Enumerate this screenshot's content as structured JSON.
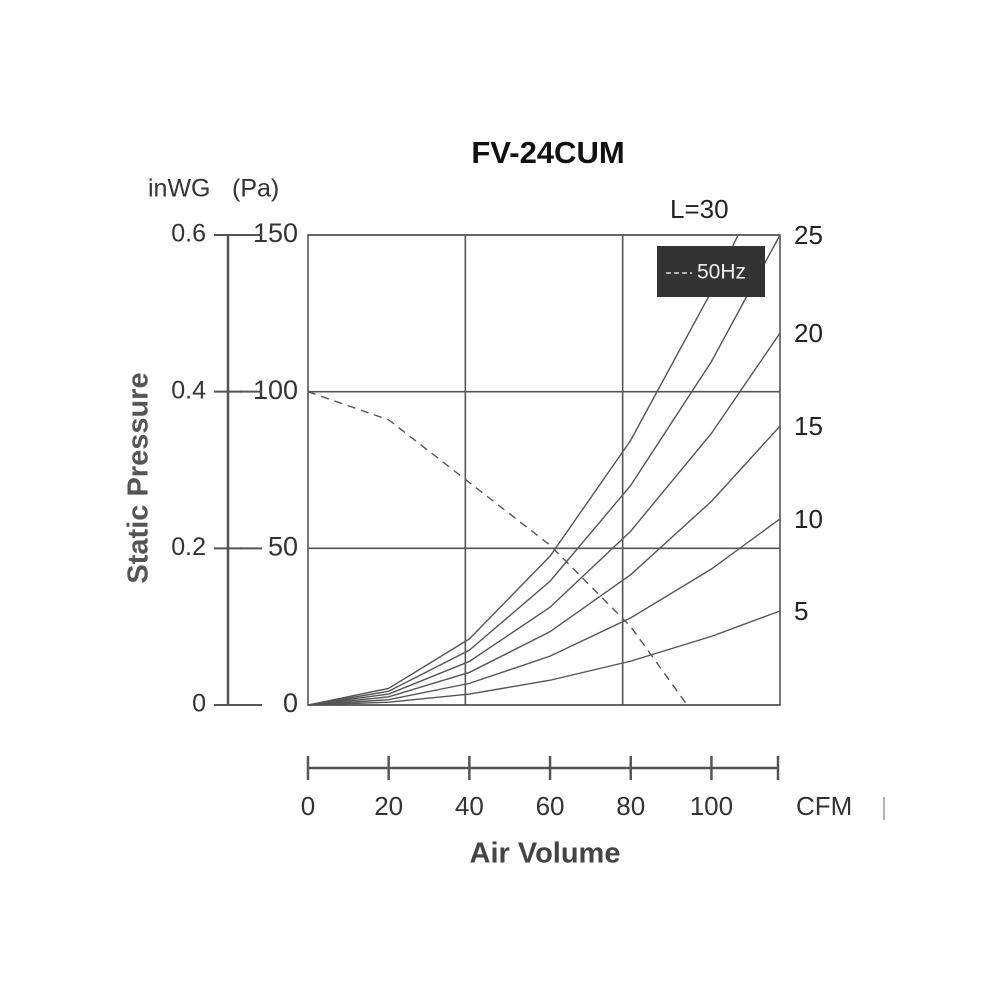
{
  "chart_data": {
    "type": "line",
    "title": "FV-24CUM",
    "y_label": "Static Pressure",
    "y_unit": "(Pa)",
    "y2_unit": "inWG",
    "x_label": "Air Volume",
    "x_unit": "CFM",
    "xlim": [
      0,
      117
    ],
    "xticks": [
      0,
      20,
      40,
      60,
      80,
      100
    ],
    "ylim": [
      0,
      150
    ],
    "yticks": [
      0,
      50,
      100,
      150
    ],
    "y2lim": [
      0,
      0.6
    ],
    "y2ticks": [
      0,
      0.2,
      0.4,
      0.6
    ],
    "grid": true,
    "series": [
      {
        "name": "5",
        "color": "#555555",
        "x": [
          0,
          20,
          40,
          60,
          80,
          100,
          117
        ],
        "values": [
          0,
          0.9,
          3.5,
          7.9,
          14,
          21.9,
          30
        ]
      },
      {
        "name": "10",
        "color": "#555555",
        "x": [
          0,
          20,
          40,
          60,
          80,
          100,
          117
        ],
        "values": [
          0,
          1.7,
          6.9,
          15.6,
          27.8,
          43.4,
          59.4
        ]
      },
      {
        "name": "15",
        "color": "#555555",
        "x": [
          0,
          20,
          40,
          60,
          80,
          100,
          117
        ],
        "values": [
          0,
          2.6,
          10.4,
          23.4,
          41.6,
          65,
          89
        ]
      },
      {
        "name": "20",
        "color": "#555555",
        "x": [
          0,
          20,
          40,
          60,
          80,
          100,
          117
        ],
        "values": [
          0,
          3.5,
          13.9,
          31.2,
          55.5,
          86.7,
          118.7
        ]
      },
      {
        "name": "25",
        "color": "#555555",
        "x": [
          0,
          20,
          40,
          60,
          80,
          100,
          117
        ],
        "values": [
          0,
          4.4,
          17.5,
          39.5,
          70.1,
          109.6,
          150
        ]
      },
      {
        "name": "L=30",
        "color": "#555555",
        "x": [
          0,
          20,
          40,
          60,
          80,
          100,
          106.6
        ],
        "values": [
          0,
          5.3,
          21.1,
          47.5,
          84.5,
          132,
          150
        ]
      }
    ],
    "fan_curve": {
      "name": "50Hz",
      "color": "#555555",
      "dash": "8,6",
      "x": [
        0,
        20,
        40,
        60,
        80,
        94
      ],
      "values": [
        100,
        91,
        71,
        51,
        25,
        0
      ]
    }
  }
}
